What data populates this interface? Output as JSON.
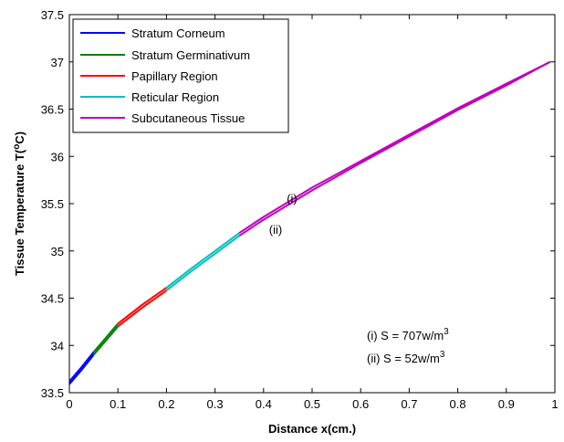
{
  "chart_data": {
    "type": "line",
    "xlabel": "Distance x(cm.)",
    "ylabel": "Tissue Temperature T(",
    "ylabel_unit": "o",
    "ylabel_end": "C)",
    "xlim": [
      0,
      1
    ],
    "ylim": [
      33.5,
      37.5
    ],
    "xticks": [
      "0",
      "0.1",
      "0.2",
      "0.3",
      "0.4",
      "0.5",
      "0.6",
      "0.7",
      "0.8",
      "0.9",
      "1"
    ],
    "xtick_values": [
      0,
      0.1,
      0.2,
      0.3,
      0.4,
      0.5,
      0.6,
      0.7,
      0.8,
      0.9,
      1
    ],
    "yticks": [
      "33.5",
      "34",
      "34.5",
      "35",
      "35.5",
      "36",
      "36.5",
      "37",
      "37.5"
    ],
    "ytick_values": [
      33.5,
      34,
      34.5,
      35,
      35.5,
      36,
      36.5,
      37,
      37.5
    ],
    "grid": false,
    "legend_position": "top-left",
    "legend": [
      {
        "label": "Stratum Corneum",
        "color": "#0000ff"
      },
      {
        "label": "Stratum Germinativum",
        "color": "#008000"
      },
      {
        "label": "Papillary Region",
        "color": "#ff0000"
      },
      {
        "label": "Reticular Region",
        "color": "#00bfbf"
      },
      {
        "label": "Subcutaneous Tissue",
        "color": "#bf00bf"
      }
    ],
    "series": [
      {
        "case": "(i)",
        "segments": [
          {
            "region": "Stratum Corneum",
            "color": "#0000ff",
            "x": [
              0,
              0.025,
              0.05
            ],
            "y": [
              33.62,
              33.77,
              33.93
            ]
          },
          {
            "region": "Stratum Germinativum",
            "color": "#008000",
            "x": [
              0.05,
              0.075,
              0.1
            ],
            "y": [
              33.93,
              34.08,
              34.23
            ]
          },
          {
            "region": "Papillary Region",
            "color": "#ff0000",
            "x": [
              0.1,
              0.15,
              0.2
            ],
            "y": [
              34.23,
              34.43,
              34.61
            ]
          },
          {
            "region": "Reticular Region",
            "color": "#00bfbf",
            "x": [
              0.2,
              0.25,
              0.3,
              0.35
            ],
            "y": [
              34.61,
              34.81,
              35.0,
              35.19
            ]
          },
          {
            "region": "Subcutaneous Tissue",
            "color": "#bf00bf",
            "x": [
              0.35,
              0.4,
              0.5,
              0.6,
              0.7,
              0.8,
              0.9,
              0.99
            ],
            "y": [
              35.19,
              35.36,
              35.67,
              35.95,
              36.23,
              36.51,
              36.77,
              37.0
            ]
          }
        ]
      },
      {
        "case": "(ii)",
        "segments": [
          {
            "region": "Stratum Corneum",
            "color": "#0000ff",
            "x": [
              0,
              0.025,
              0.05
            ],
            "y": [
              33.59,
              33.74,
              33.9
            ]
          },
          {
            "region": "Stratum Germinativum",
            "color": "#008000",
            "x": [
              0.05,
              0.075,
              0.1
            ],
            "y": [
              33.9,
              34.05,
              34.2
            ]
          },
          {
            "region": "Papillary Region",
            "color": "#ff0000",
            "x": [
              0.1,
              0.15,
              0.2
            ],
            "y": [
              34.2,
              34.4,
              34.58
            ]
          },
          {
            "region": "Reticular Region",
            "color": "#00bfbf",
            "x": [
              0.2,
              0.25,
              0.3,
              0.35
            ],
            "y": [
              34.58,
              34.78,
              34.97,
              35.16
            ]
          },
          {
            "region": "Subcutaneous Tissue",
            "color": "#bf00bf",
            "x": [
              0.35,
              0.4,
              0.5,
              0.6,
              0.7,
              0.8,
              0.9,
              0.99
            ],
            "y": [
              35.16,
              35.33,
              35.64,
              35.93,
              36.21,
              36.49,
              36.75,
              37.0
            ]
          }
        ]
      }
    ],
    "annotations": [
      {
        "text": "(i)",
        "x": 0.48,
        "y": 35.6
      },
      {
        "text": "(ii)",
        "x": 0.455,
        "y": 35.23
      }
    ],
    "notes": [
      {
        "prefix": "(i) S = 707w/m",
        "sup": "3"
      },
      {
        "prefix": "(ii) S = 52w/m",
        "sup": "3"
      }
    ]
  }
}
